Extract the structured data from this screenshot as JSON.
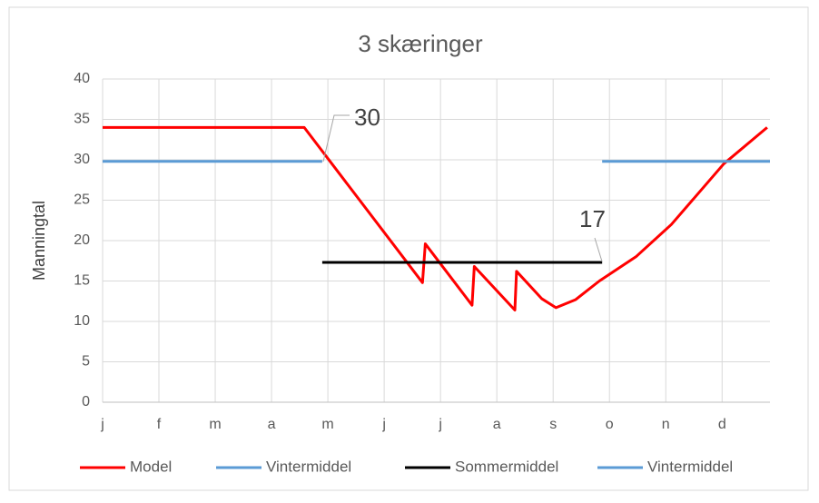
{
  "chart_data": {
    "type": "line",
    "title": "3 skæringer",
    "y_label": "Manningtal",
    "xlim": [
      0,
      11.85
    ],
    "xticks": [
      {
        "value": 0,
        "label": "j"
      },
      {
        "value": 1,
        "label": "f"
      },
      {
        "value": 2,
        "label": "m"
      },
      {
        "value": 3,
        "label": "a"
      },
      {
        "value": 4,
        "label": "m"
      },
      {
        "value": 5,
        "label": "j"
      },
      {
        "value": 6,
        "label": "j"
      },
      {
        "value": 7,
        "label": "a"
      },
      {
        "value": 8,
        "label": "s"
      },
      {
        "value": 9,
        "label": "o"
      },
      {
        "value": 10,
        "label": "n"
      },
      {
        "value": 11,
        "label": "d"
      }
    ],
    "ylim": [
      0,
      40
    ],
    "yticks": [
      0,
      5,
      10,
      15,
      20,
      25,
      30,
      35,
      40
    ],
    "grid": true,
    "legend": "bottom",
    "series": [
      {
        "name": "Model",
        "color": "#ff0000",
        "x": [
          0,
          3.58,
          5.68,
          5.73,
          6.56,
          6.6,
          7.32,
          7.35,
          7.8,
          8.05,
          8.4,
          8.82,
          9.47,
          10.1,
          11.03,
          11.8
        ],
        "values": [
          34,
          34,
          14.8,
          19.6,
          12,
          16.8,
          11.4,
          16.2,
          12.8,
          11.7,
          12.7,
          15,
          18,
          22,
          29.5,
          34
        ]
      },
      {
        "name": "Vintermiddel",
        "color": "#5b9bd5",
        "x": [
          0,
          3.9
        ],
        "values": [
          29.8,
          29.8
        ]
      },
      {
        "name": "Sommermiddel",
        "color": "#000000",
        "x": [
          3.9,
          8.87
        ],
        "values": [
          17.3,
          17.3
        ]
      },
      {
        "name": "Vintermiddel",
        "color": "#5b9bd5",
        "x": [
          8.87,
          11.85
        ],
        "values": [
          29.8,
          29.8
        ]
      }
    ],
    "annotations": [
      "30",
      "17"
    ]
  }
}
